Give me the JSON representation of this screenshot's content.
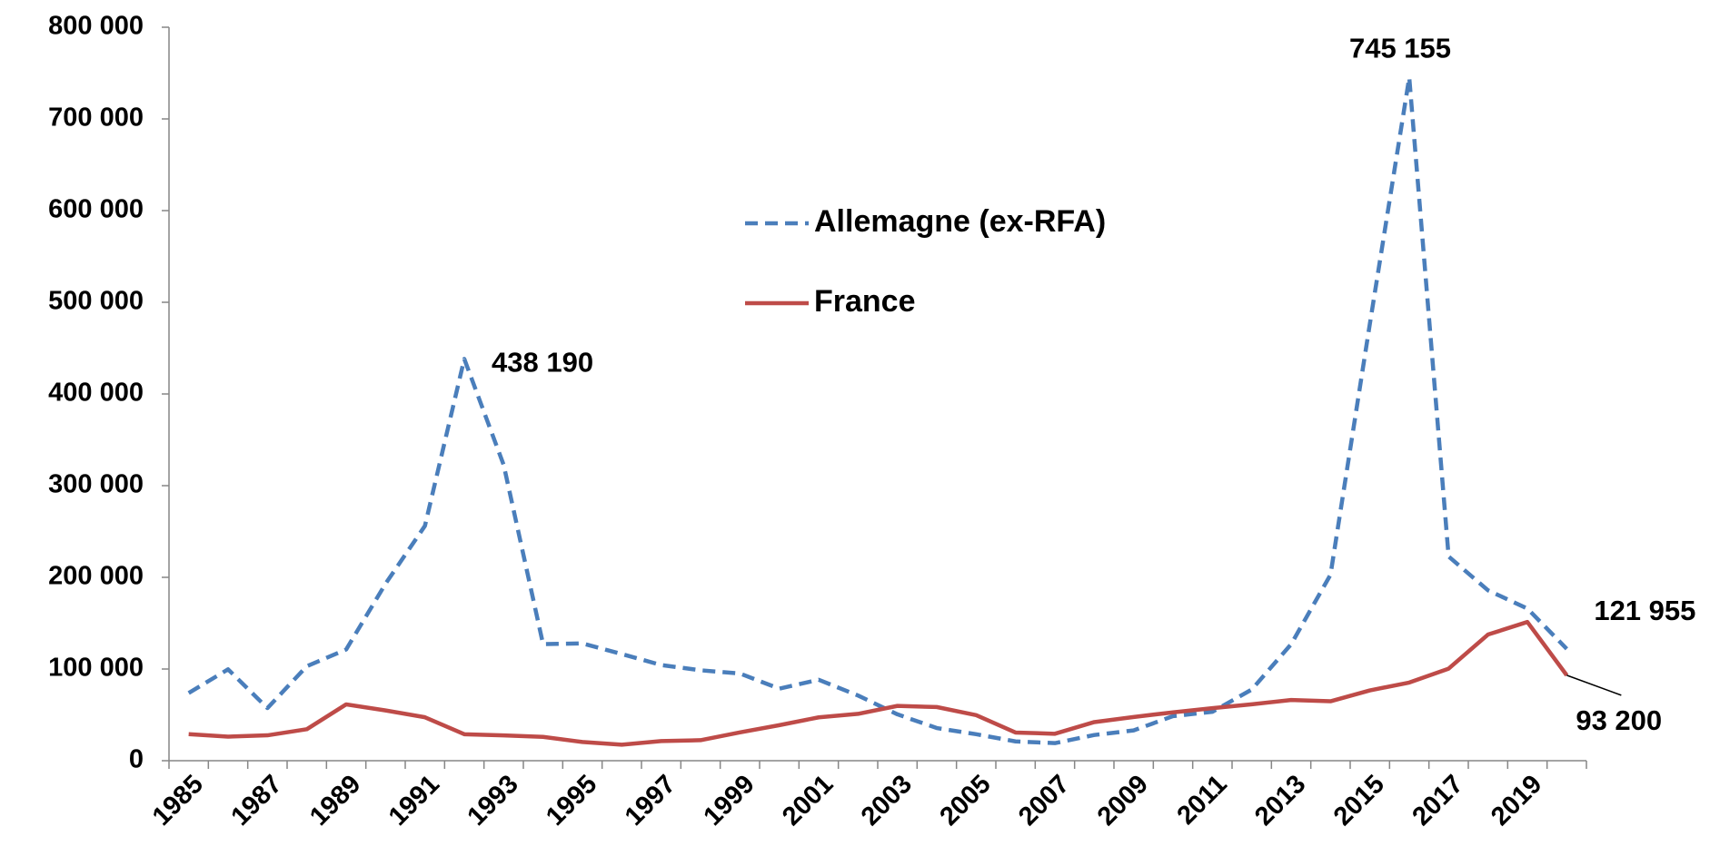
{
  "chart_data": {
    "type": "line",
    "x": [
      1985,
      1986,
      1987,
      1988,
      1989,
      1990,
      1991,
      1992,
      1993,
      1994,
      1995,
      1996,
      1997,
      1998,
      1999,
      2000,
      2001,
      2002,
      2003,
      2004,
      2005,
      2006,
      2007,
      2008,
      2009,
      2010,
      2011,
      2012,
      2013,
      2014,
      2015,
      2016,
      2017,
      2018,
      2019,
      2020
    ],
    "xlim": [
      1984.5,
      2020.5
    ],
    "xticks": [
      1985,
      1987,
      1989,
      1991,
      1993,
      1995,
      1997,
      1999,
      2001,
      2003,
      2005,
      2007,
      2009,
      2011,
      2013,
      2015,
      2017,
      2019
    ],
    "ylim": [
      0,
      800000
    ],
    "yticks": [
      0,
      {
        "value": 100000,
        "label": "100 000"
      },
      {
        "value": 200000,
        "label": "200 000"
      },
      {
        "value": 300000,
        "label": "300 000"
      },
      {
        "value": 400000,
        "label": "400 000"
      },
      {
        "value": 500000,
        "label": "500 000"
      },
      {
        "value": 600000,
        "label": "600 000"
      },
      {
        "value": 700000,
        "label": "700 000"
      },
      {
        "value": 800000,
        "label": "800 000"
      }
    ],
    "grid": false,
    "series": [
      {
        "name": "Allemagne (ex-RFA)",
        "color": "#4a7ebb",
        "dashed": true,
        "values": [
          73832,
          99650,
          57379,
          103076,
          121318,
          193063,
          256112,
          438190,
          322599,
          127210,
          127937,
          116367,
          104353,
          98644,
          95113,
          78564,
          88287,
          71127,
          50563,
          35607,
          28914,
          21029,
          19164,
          28018,
          33033,
          48589,
          53347,
          77651,
          127023,
          202834,
          476649,
          745155,
          222683,
          185853,
          165938,
          121955
        ],
        "value_labels": [
          null,
          null,
          null,
          null,
          null,
          null,
          null,
          "438 190",
          null,
          null,
          null,
          null,
          null,
          null,
          null,
          null,
          null,
          null,
          null,
          null,
          null,
          null,
          null,
          null,
          null,
          null,
          null,
          null,
          null,
          null,
          null,
          "745 155",
          null,
          null,
          null,
          "121 955"
        ]
      },
      {
        "name": "France",
        "color": "#be4b48",
        "dashed": false,
        "values": [
          28925,
          26290,
          27672,
          34352,
          61422,
          54813,
          47380,
          28872,
          27564,
          25964,
          20415,
          17405,
          21416,
          22375,
          30907,
          38747,
          47291,
          51087,
          59768,
          58545,
          49733,
          30748,
          29387,
          42119,
          47686,
          52762,
          57337,
          61468,
          66251,
          64811,
          76700,
          85244,
          100412,
          137600,
          151283,
          93200
        ],
        "value_labels": [
          null,
          null,
          null,
          null,
          null,
          null,
          null,
          null,
          null,
          null,
          null,
          null,
          null,
          null,
          null,
          null,
          null,
          null,
          null,
          null,
          null,
          null,
          null,
          null,
          null,
          null,
          null,
          null,
          null,
          null,
          null,
          null,
          null,
          null,
          null,
          "93 200"
        ]
      }
    ]
  }
}
